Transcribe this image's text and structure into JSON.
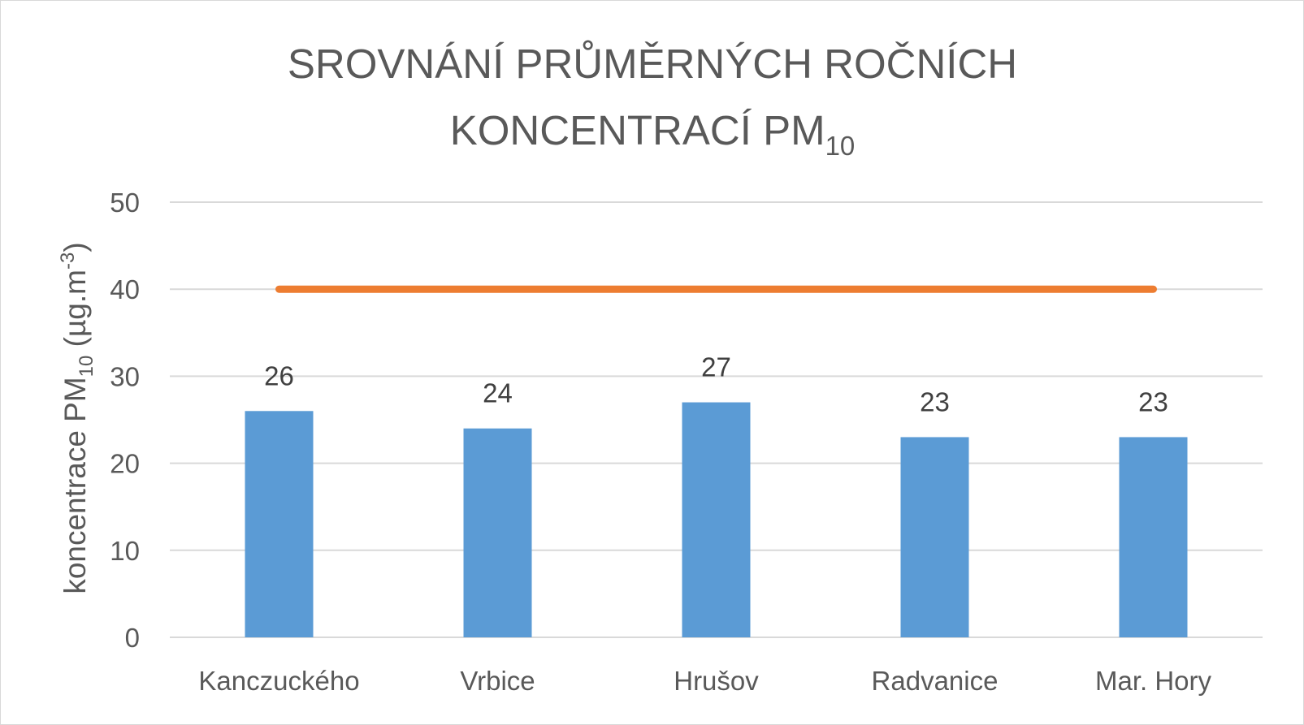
{
  "chart_data": {
    "type": "bar",
    "title": {
      "line1": "SROVNÁNÍ PRŮMĚRNÝCH ROČNÍCH",
      "line2_main": "KONCENTRACÍ PM",
      "line2_sub": "10"
    },
    "ylabel": {
      "main": "koncentrace PM",
      "sub": "10",
      "unit": " (µg.m",
      "sup": "-3",
      "close": ")"
    },
    "xlabel": "",
    "categories": [
      "Kanczuckého",
      "Vrbice",
      "Hrušov",
      "Radvanice",
      "Mar. Hory"
    ],
    "series": [
      {
        "type": "bar",
        "values": [
          26,
          24,
          27,
          23,
          23
        ],
        "color": "#5b9bd5",
        "data_labels": [
          "26",
          "24",
          "27",
          "23",
          "23"
        ]
      },
      {
        "type": "line",
        "values": [
          40,
          40,
          40,
          40,
          40
        ],
        "color": "#ed7d31"
      }
    ],
    "ylim": [
      0,
      50
    ],
    "yticks": [
      "0",
      "10",
      "20",
      "30",
      "40",
      "50"
    ],
    "grid": true,
    "legend": "none"
  },
  "colors": {
    "bar": "#5b9bd5",
    "limit_line": "#ed7d31",
    "grid": "#d9d9d9",
    "text": "#595959"
  }
}
